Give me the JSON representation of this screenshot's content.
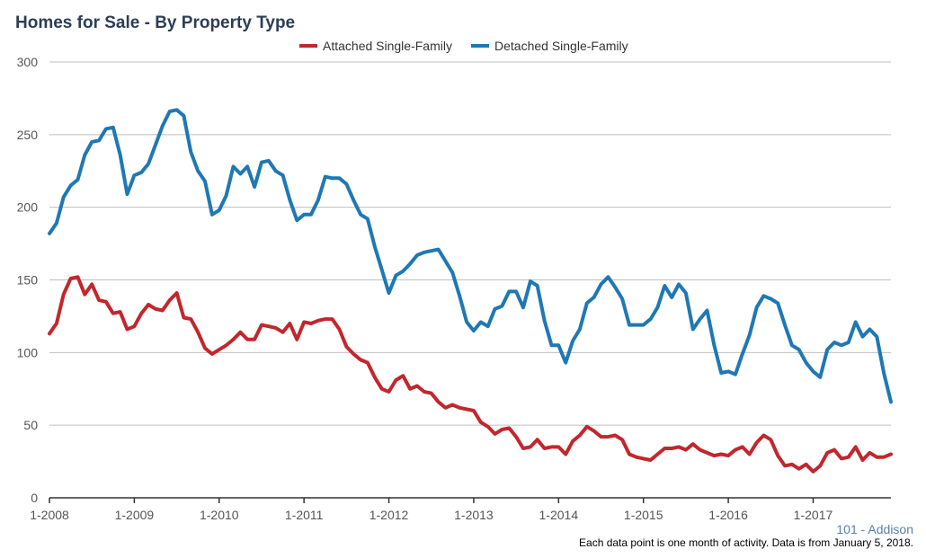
{
  "title": "Homes for Sale - By Property Type",
  "area_label": "101 - Addison",
  "footnote": "Each data point is one month of activity. Data is from January 5, 2018.",
  "colors": {
    "attached": "#c1272d",
    "detached": "#1f78b4",
    "grid": "#bfbfbf",
    "axis": "#333333"
  },
  "chart_data": {
    "type": "line",
    "title": "Homes for Sale - By Property Type",
    "ylim": [
      0,
      300
    ],
    "yticks": [
      0,
      50,
      100,
      150,
      200,
      250,
      300
    ],
    "xticks": [
      {
        "label": "1-2008",
        "index": 0
      },
      {
        "label": "1-2009",
        "index": 12
      },
      {
        "label": "1-2010",
        "index": 24
      },
      {
        "label": "1-2011",
        "index": 36
      },
      {
        "label": "1-2012",
        "index": 48
      },
      {
        "label": "1-2013",
        "index": 60
      },
      {
        "label": "1-2014",
        "index": 72
      },
      {
        "label": "1-2015",
        "index": 84
      },
      {
        "label": "1-2016",
        "index": 96
      },
      {
        "label": "1-2017",
        "index": 108
      }
    ],
    "x_count": 120,
    "grid": true,
    "legend_position": "top-center",
    "series": [
      {
        "name": "Attached Single-Family",
        "color": "#c1272d",
        "values": [
          113,
          120,
          140,
          151,
          152,
          140,
          147,
          136,
          135,
          127,
          128,
          116,
          118,
          127,
          133,
          130,
          129,
          136,
          141,
          124,
          123,
          114,
          103,
          99,
          102,
          105,
          109,
          114,
          109,
          109,
          119,
          118,
          117,
          114,
          120,
          109,
          121,
          120,
          122,
          123,
          123,
          116,
          104,
          99,
          95,
          93,
          83,
          75,
          73,
          81,
          84,
          75,
          77,
          73,
          72,
          66,
          62,
          64,
          62,
          61,
          60,
          52,
          49,
          44,
          47,
          48,
          42,
          34,
          35,
          40,
          34,
          35,
          35,
          30,
          39,
          43,
          49,
          46,
          42,
          42,
          43,
          40,
          30,
          28,
          27,
          26,
          30,
          34,
          34,
          35,
          33,
          37,
          33,
          31,
          29,
          30,
          29,
          33,
          35,
          30,
          38,
          43,
          40,
          29,
          22,
          23,
          20,
          23,
          18,
          22,
          31,
          33,
          27,
          28,
          35,
          26,
          31,
          28,
          28,
          30
        ]
      },
      {
        "name": "Detached Single-Family",
        "color": "#1f78b4",
        "values": [
          182,
          189,
          207,
          215,
          219,
          236,
          245,
          246,
          254,
          255,
          236,
          209,
          222,
          224,
          230,
          243,
          256,
          266,
          267,
          263,
          238,
          225,
          218,
          195,
          198,
          208,
          228,
          223,
          228,
          214,
          231,
          232,
          225,
          222,
          205,
          191,
          195,
          195,
          205,
          221,
          220,
          220,
          216,
          205,
          195,
          192,
          173,
          157,
          141,
          153,
          156,
          161,
          167,
          169,
          170,
          171,
          163,
          155,
          139,
          121,
          115,
          121,
          118,
          130,
          132,
          142,
          142,
          131,
          149,
          146,
          122,
          105,
          105,
          93,
          108,
          116,
          134,
          138,
          147,
          152,
          145,
          137,
          119,
          119,
          119,
          123,
          131,
          146,
          138,
          147,
          141,
          116,
          123,
          129,
          105,
          86,
          87,
          85,
          99,
          112,
          131,
          139,
          137,
          134,
          119,
          105,
          102,
          93,
          87,
          83,
          102,
          107,
          105,
          107,
          121,
          111,
          116,
          111,
          86,
          66
        ]
      }
    ]
  }
}
